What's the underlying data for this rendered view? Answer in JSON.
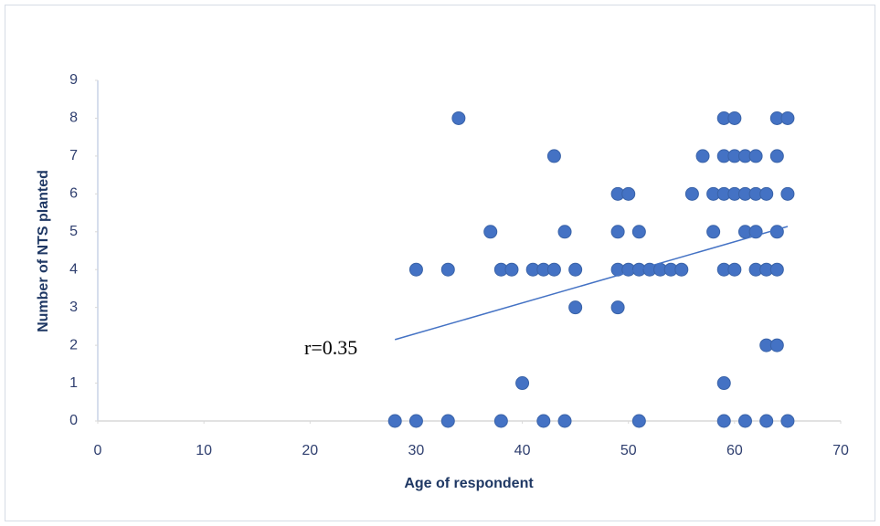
{
  "chart_data": {
    "type": "scatter",
    "x_label": "Age of respondent",
    "y_label": "Number of NTS planted",
    "annotation": "r=0.35",
    "color": "#4472c4",
    "trendline_color": "#4472c4",
    "xlim": [
      0,
      70
    ],
    "xticks": [
      0,
      10,
      20,
      30,
      40,
      50,
      60,
      70
    ],
    "ylim": [
      0,
      9
    ],
    "yticks": [
      0,
      1,
      2,
      3,
      4,
      5,
      6,
      7,
      8,
      9
    ],
    "grid": false,
    "x": [
      28,
      30,
      33,
      38,
      42,
      44,
      51,
      59,
      61,
      63,
      65,
      40,
      59,
      63,
      64,
      45,
      49,
      30,
      33,
      38,
      39,
      41,
      42,
      43,
      45,
      49,
      50,
      51,
      52,
      53,
      54,
      55,
      59,
      60,
      62,
      63,
      64,
      37,
      44,
      49,
      51,
      58,
      61,
      62,
      64,
      49,
      50,
      56,
      58,
      59,
      60,
      61,
      62,
      63,
      65,
      43,
      57,
      59,
      60,
      61,
      62,
      64,
      34,
      59,
      60,
      64,
      65
    ],
    "y": [
      0,
      0,
      0,
      0,
      0,
      0,
      0,
      0,
      0,
      0,
      0,
      1,
      1,
      2,
      2,
      3,
      3,
      4,
      4,
      4,
      4,
      4,
      4,
      4,
      4,
      4,
      4,
      4,
      4,
      4,
      4,
      4,
      4,
      4,
      4,
      4,
      4,
      5,
      5,
      5,
      5,
      5,
      5,
      5,
      5,
      6,
      6,
      6,
      6,
      6,
      6,
      6,
      6,
      6,
      6,
      7,
      7,
      7,
      7,
      7,
      7,
      7,
      8,
      8,
      8,
      8,
      8
    ],
    "trendline": {
      "x": [
        28,
        65
      ],
      "y": [
        2.15,
        5.14
      ]
    }
  }
}
